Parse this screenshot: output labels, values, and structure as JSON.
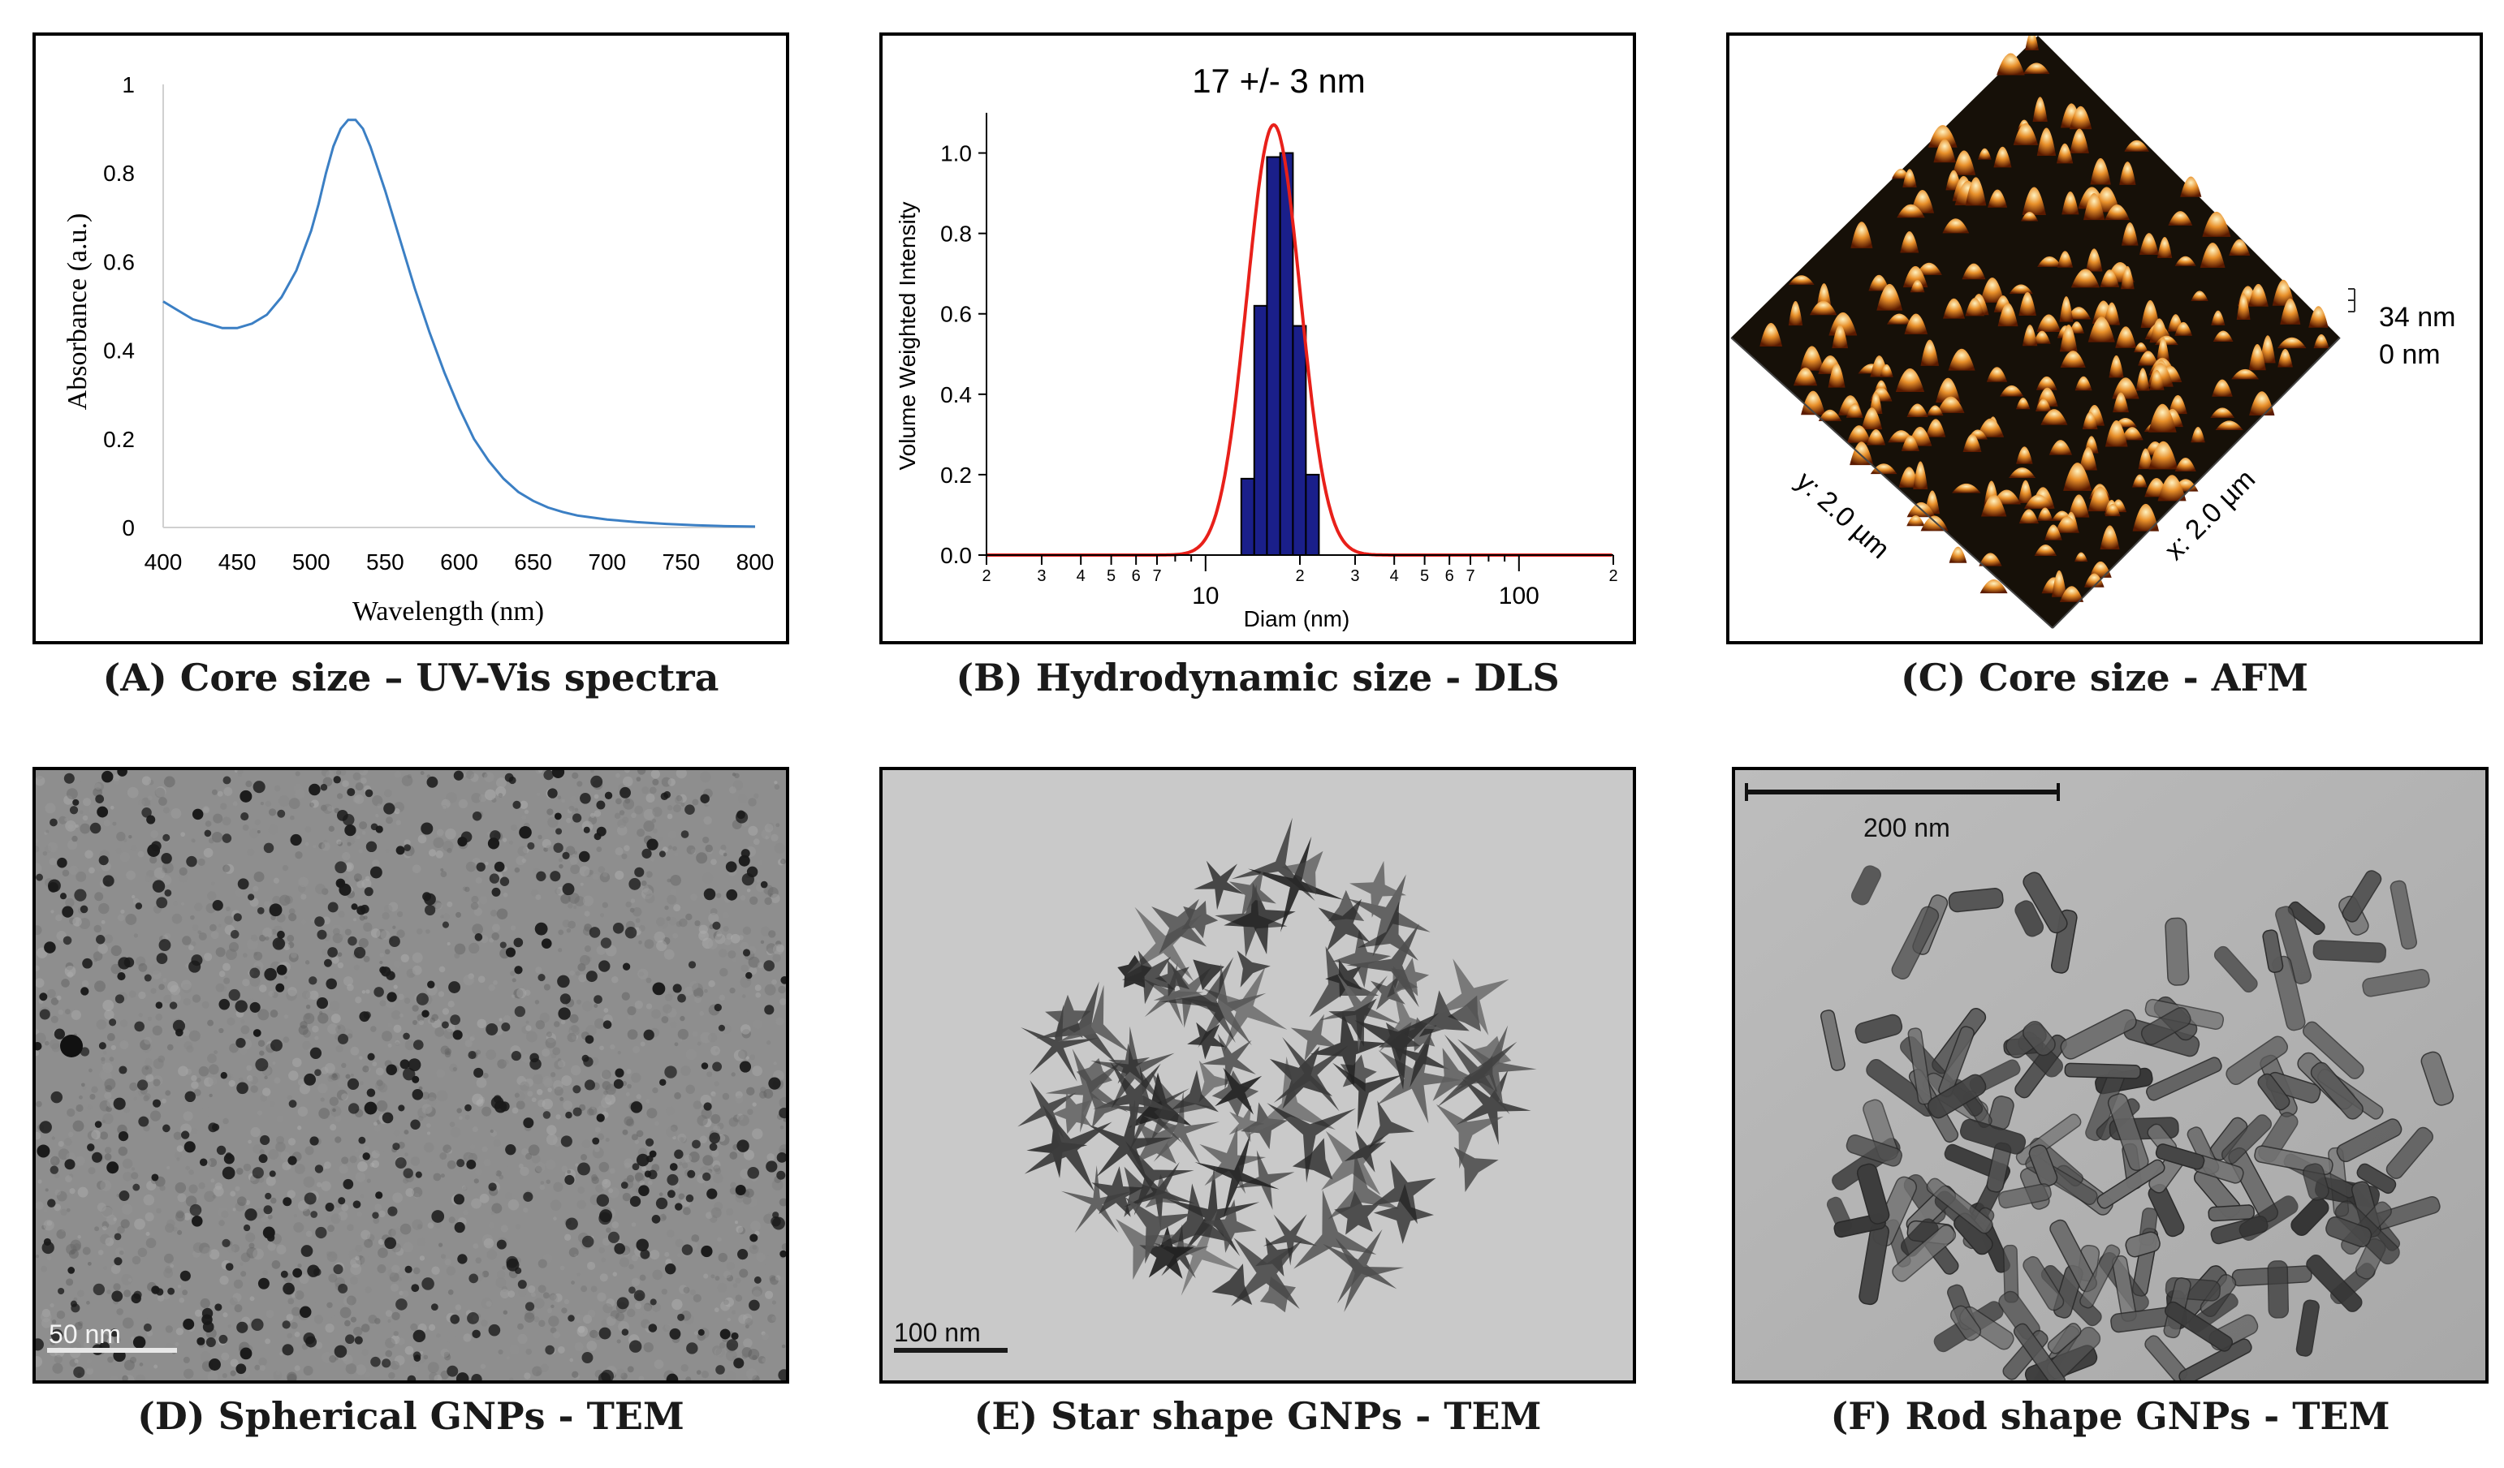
{
  "panels": {
    "a": {
      "caption": "(A) Core size – UV-Vis  spectra",
      "chart_data": {
        "type": "line",
        "xlabel": "Wavelength (nm)",
        "ylabel": "Absorbance (a.u.)",
        "xlim": [
          400,
          800
        ],
        "ylim": [
          0,
          1
        ],
        "x_ticks": [
          "400",
          "450",
          "500",
          "550",
          "600",
          "650",
          "700",
          "750",
          "800"
        ],
        "y_ticks": [
          "0",
          "0.2",
          "0.4",
          "0.6",
          "0.8",
          "1"
        ],
        "series": [
          {
            "color": "#3b7fc4",
            "x": [
              400,
              410,
              420,
              430,
              440,
              450,
              460,
              470,
              480,
              490,
              500,
              505,
              510,
              515,
              520,
              525,
              530,
              535,
              540,
              545,
              550,
              560,
              570,
              580,
              590,
              600,
              610,
              620,
              630,
              640,
              650,
              660,
              670,
              680,
              700,
              720,
              740,
              760,
              780,
              800
            ],
            "y": [
              0.51,
              0.49,
              0.47,
              0.46,
              0.45,
              0.45,
              0.46,
              0.48,
              0.52,
              0.58,
              0.67,
              0.73,
              0.8,
              0.86,
              0.9,
              0.92,
              0.92,
              0.9,
              0.86,
              0.81,
              0.76,
              0.65,
              0.54,
              0.44,
              0.35,
              0.27,
              0.2,
              0.15,
              0.11,
              0.08,
              0.06,
              0.045,
              0.035,
              0.027,
              0.018,
              0.012,
              0.008,
              0.005,
              0.003,
              0.002
            ]
          }
        ]
      }
    },
    "b": {
      "caption": "(B) Hydrodynamic size - DLS",
      "chart_data": {
        "type": "bar",
        "title": "17 +/- 3 nm",
        "xlabel": "Diam (nm)",
        "ylabel": "Volume Weighted Intensity",
        "x_scale": "log",
        "xlim": [
          2,
          200
        ],
        "ylim": [
          0,
          1.1
        ],
        "y_ticks": [
          "0.0",
          "0.2",
          "0.4",
          "0.6",
          "0.8",
          "1.0"
        ],
        "x_ticks_major": [
          "10",
          "100"
        ],
        "x_ticks_minor": [
          "2",
          "3",
          "4",
          "5",
          "6",
          "7",
          "2",
          "3",
          "4",
          "5",
          "6",
          "7",
          "2"
        ],
        "bars": {
          "edges": [
            13.0,
            14.3,
            15.7,
            17.3,
            19.0,
            20.9,
            23.0
          ],
          "values": [
            0.19,
            0.62,
            0.99,
            1.0,
            0.57,
            0.2
          ],
          "color": "#1a1f8a"
        },
        "fit": {
          "color": "#e8201a",
          "center": 16.5,
          "sigma_log": 0.085,
          "peak": 1.07
        }
      }
    },
    "c": {
      "caption": "(C) Core size - AFM",
      "z_max_label": "34 nm",
      "z_min_label": "0 nm",
      "y_axis_label": "y: 2.0 µm",
      "x_axis_label": "x: 2.0 µm"
    },
    "d": {
      "caption": "(D) Spherical GNPs - TEM",
      "scale_label": "50 nm"
    },
    "e": {
      "caption": "(E) Star shape GNPs - TEM",
      "scale_label": "100 nm"
    },
    "f": {
      "caption": "(F) Rod shape GNPs - TEM",
      "scale_label": "200 nm"
    }
  }
}
